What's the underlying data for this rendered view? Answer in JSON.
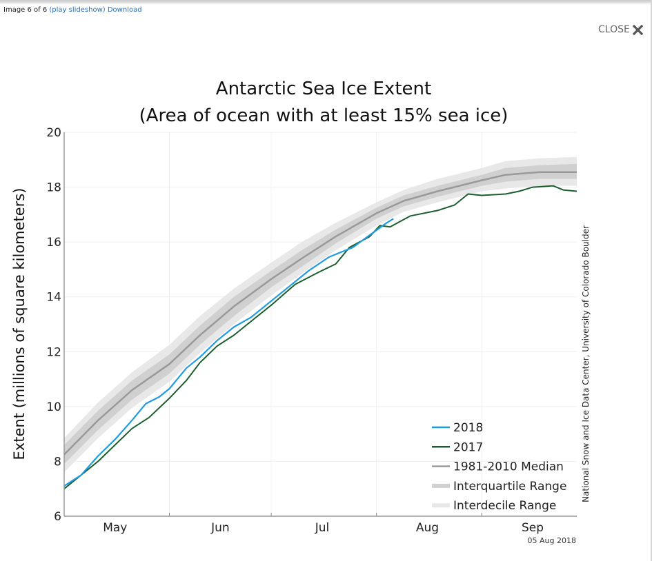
{
  "viewer": {
    "caption": "Image 6 of 6",
    "slideshow_link": "(play slideshow)",
    "download_link": "Download",
    "close_label": "CLOSE"
  },
  "chart_data": {
    "type": "line",
    "title": "Antarctic Sea Ice Extent",
    "subtitle": "(Area of ocean with at least 15% sea ice)",
    "xlabel": "",
    "ylabel": "Extent (millions of square kilometers)",
    "ylim": [
      6,
      20
    ],
    "yticks": [
      6,
      8,
      10,
      12,
      14,
      16,
      18,
      20
    ],
    "x_unit": "days since May 1",
    "xlim": [
      0,
      151
    ],
    "x_month_boundaries": [
      0,
      31,
      61,
      92,
      123
    ],
    "x_tick_labels": [
      {
        "label": "May",
        "center": 15
      },
      {
        "label": "Jun",
        "center": 46
      },
      {
        "label": "Jul",
        "center": 76
      },
      {
        "label": "Aug",
        "center": 107
      },
      {
        "label": "Sep",
        "center": 138
      }
    ],
    "grid": true,
    "legend_position": "bottom-right",
    "date_stamp": "05 Aug 2018",
    "credit": "National Snow and Ice Data Center, University of Colorado Boulder",
    "colors": {
      "2018": "#1f9be0",
      "2017": "#1a5e2e",
      "median": "#999999",
      "interquartile": "#d0d0d0",
      "interdecile": "#e8e8e8"
    },
    "legend": [
      "2018",
      "2017",
      "1981-2010 Median",
      "Interquartile Range",
      "Interdecile Range"
    ],
    "series": [
      {
        "name": "1981-2010 Median",
        "x": [
          0,
          10,
          20,
          31,
          40,
          50,
          61,
          70,
          80,
          92,
          100,
          110,
          123,
          130,
          140,
          151
        ],
        "values": [
          8.25,
          9.5,
          10.6,
          11.55,
          12.6,
          13.65,
          14.65,
          15.4,
          16.2,
          17.05,
          17.5,
          17.85,
          18.25,
          18.45,
          18.55,
          18.55
        ]
      },
      {
        "name": "Interquartile Range",
        "x": [
          0,
          10,
          20,
          31,
          40,
          50,
          61,
          70,
          80,
          92,
          100,
          110,
          123,
          130,
          140,
          151
        ],
        "low": [
          7.9,
          9.15,
          10.25,
          11.2,
          12.25,
          13.3,
          14.35,
          15.1,
          15.95,
          16.85,
          17.3,
          17.65,
          18.05,
          18.2,
          18.3,
          18.3
        ],
        "high": [
          8.6,
          9.85,
          10.95,
          11.9,
          12.95,
          14.0,
          14.95,
          15.7,
          16.45,
          17.25,
          17.7,
          18.05,
          18.45,
          18.7,
          18.8,
          18.85
        ]
      },
      {
        "name": "Interdecile Range",
        "x": [
          0,
          10,
          20,
          31,
          40,
          50,
          61,
          70,
          80,
          92,
          100,
          110,
          123,
          130,
          140,
          151
        ],
        "low": [
          7.6,
          8.85,
          9.95,
          10.9,
          11.95,
          13.0,
          14.05,
          14.85,
          15.7,
          16.6,
          17.1,
          17.45,
          17.85,
          17.95,
          18.05,
          18.05
        ],
        "high": [
          8.85,
          10.15,
          11.25,
          12.25,
          13.3,
          14.3,
          15.25,
          16.0,
          16.7,
          17.45,
          17.9,
          18.3,
          18.7,
          18.95,
          19.05,
          19.1
        ]
      },
      {
        "name": "2017",
        "x": [
          0,
          10,
          20,
          25,
          31,
          36,
          40,
          45,
          50,
          56,
          61,
          68,
          75,
          80,
          84,
          90,
          93,
          96,
          102,
          110,
          115,
          119,
          123,
          130,
          134,
          138,
          144,
          147,
          151
        ],
        "values": [
          7.0,
          8.0,
          9.2,
          9.6,
          10.3,
          10.95,
          11.6,
          12.2,
          12.6,
          13.2,
          13.7,
          14.45,
          14.9,
          15.2,
          15.8,
          16.2,
          16.6,
          16.55,
          16.95,
          17.15,
          17.35,
          17.75,
          17.7,
          17.75,
          17.85,
          18.0,
          18.05,
          17.9,
          17.85
        ]
      },
      {
        "name": "2018",
        "x": [
          0,
          5,
          10,
          15,
          20,
          24,
          28,
          31,
          36,
          40,
          45,
          50,
          55,
          61,
          67,
          72,
          78,
          85,
          90,
          95,
          97
        ],
        "values": [
          7.1,
          7.5,
          8.2,
          8.8,
          9.5,
          10.1,
          10.35,
          10.65,
          11.4,
          11.8,
          12.4,
          12.9,
          13.25,
          13.85,
          14.45,
          14.95,
          15.45,
          15.8,
          16.25,
          16.7,
          16.85
        ]
      }
    ]
  }
}
